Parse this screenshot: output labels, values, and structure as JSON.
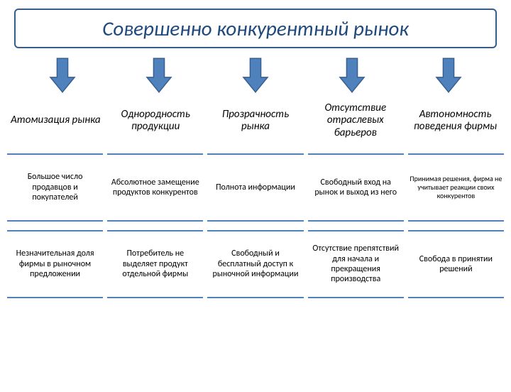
{
  "title": {
    "text": "Совершенно конкурентный рынок",
    "fontsize": 29,
    "color": "#1f497d",
    "border_color": "#385d8a"
  },
  "arrow": {
    "fill": "#4f81bd",
    "stroke": "#385d8a",
    "count": 5
  },
  "headers": {
    "fontsize": 15,
    "color": "#000000",
    "items": [
      "Атомизация рынка",
      "Однородность продукции",
      "Прозрачность рынка",
      "Отсутствие отраслевых барьеров",
      "Автономность поведения фирмы"
    ]
  },
  "details": {
    "border_color": "#4f81bd",
    "color": "#000000",
    "rows": [
      {
        "cells": [
          {
            "text": "Большое число продавцов и покупателей",
            "fontsize": 12
          },
          {
            "text": "Абсолютное замещение продуктов конкурентов",
            "fontsize": 12
          },
          {
            "text": "Полнота информации",
            "fontsize": 12
          },
          {
            "text": "Свободный вход на рынок и выход из него",
            "fontsize": 12
          },
          {
            "text": "Принимая решения, фирма не учитывает реакции своих конкурентов",
            "fontsize": 10
          }
        ]
      },
      {
        "cells": [
          {
            "text": "Незначительная доля фирмы в рыночном предложении",
            "fontsize": 12
          },
          {
            "text": "Потребитель не выделяет продукт отдельной фирмы",
            "fontsize": 12
          },
          {
            "text": "Свободный и бесплатный доступ к рыночной информации",
            "fontsize": 12
          },
          {
            "text": "Отсутствие препятствий для начала и прекращения производства",
            "fontsize": 12
          },
          {
            "text": "Свобода в принятии решений",
            "fontsize": 12
          }
        ]
      }
    ]
  }
}
